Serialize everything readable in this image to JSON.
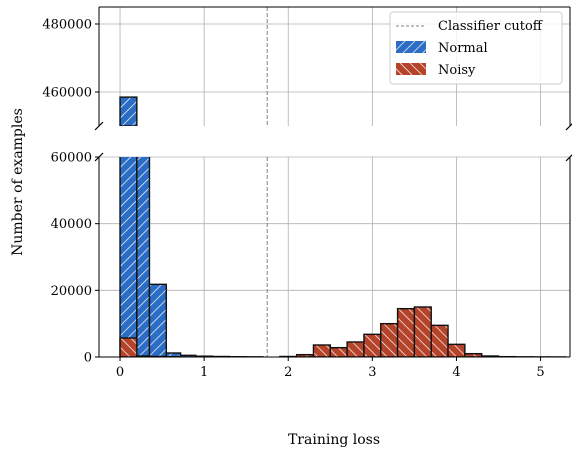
{
  "chart_data": {
    "type": "bar",
    "title": "",
    "xlabel": "Training loss",
    "ylabel": "Number of examples",
    "grid": true,
    "broken_y_axis": true,
    "bin_width": 0.2,
    "xlim": [
      -0.25,
      5.35
    ],
    "x_ticks": [
      0,
      1,
      2,
      3,
      4,
      5
    ],
    "ylim_upper": [
      450000,
      485000
    ],
    "ylim_lower": [
      0,
      60000
    ],
    "y_ticks_upper": [
      460000,
      480000
    ],
    "y_ticks_lower": [
      0,
      20000,
      40000,
      60000
    ],
    "legend_position": "top-right",
    "cutoff": {
      "name": "Classifier cutoff",
      "x": 1.75,
      "color": "#808080"
    },
    "series": [
      {
        "name": "Normal",
        "color": "#2b6cc4",
        "bins": [
          {
            "x0": 0.0,
            "x1": 0.2,
            "value": 458500
          },
          {
            "x0": 0.2,
            "x1": 0.35,
            "value": 62000
          },
          {
            "x0": 0.35,
            "x1": 0.55,
            "value": 21800
          },
          {
            "x0": 0.55,
            "x1": 0.72,
            "value": 1200
          },
          {
            "x0": 0.72,
            "x1": 0.9,
            "value": 500
          },
          {
            "x0": 0.9,
            "x1": 1.1,
            "value": 250
          },
          {
            "x0": 1.1,
            "x1": 1.3,
            "value": 150
          },
          {
            "x0": 1.3,
            "x1": 1.5,
            "value": 80
          },
          {
            "x0": 1.5,
            "x1": 1.7,
            "value": 50
          },
          {
            "x0": 2.35,
            "x1": 2.55,
            "value": 1500
          }
        ]
      },
      {
        "name": "Noisy",
        "color": "#b5432a",
        "bins": [
          {
            "x0": 0.0,
            "x1": 0.2,
            "value": 5700
          },
          {
            "x0": 0.2,
            "x1": 0.35,
            "value": 300
          },
          {
            "x0": 0.35,
            "x1": 0.55,
            "value": 150
          },
          {
            "x0": 0.55,
            "x1": 0.72,
            "value": 80
          },
          {
            "x0": 1.9,
            "x1": 2.1,
            "value": 150
          },
          {
            "x0": 2.1,
            "x1": 2.3,
            "value": 700
          },
          {
            "x0": 2.3,
            "x1": 2.5,
            "value": 3600
          },
          {
            "x0": 2.5,
            "x1": 2.7,
            "value": 2800
          },
          {
            "x0": 2.7,
            "x1": 2.9,
            "value": 4500
          },
          {
            "x0": 2.9,
            "x1": 3.1,
            "value": 6800
          },
          {
            "x0": 3.1,
            "x1": 3.3,
            "value": 10000
          },
          {
            "x0": 3.3,
            "x1": 3.5,
            "value": 14500
          },
          {
            "x0": 3.5,
            "x1": 3.7,
            "value": 15000
          },
          {
            "x0": 3.7,
            "x1": 3.9,
            "value": 9500
          },
          {
            "x0": 3.9,
            "x1": 4.1,
            "value": 3800
          },
          {
            "x0": 4.1,
            "x1": 4.3,
            "value": 1000
          },
          {
            "x0": 4.3,
            "x1": 4.5,
            "value": 300
          },
          {
            "x0": 4.5,
            "x1": 4.7,
            "value": 100
          },
          {
            "x0": 4.7,
            "x1": 4.9,
            "value": 50
          },
          {
            "x0": 4.9,
            "x1": 5.1,
            "value": 30
          },
          {
            "x0": 5.1,
            "x1": 5.3,
            "value": 20
          }
        ]
      }
    ]
  }
}
